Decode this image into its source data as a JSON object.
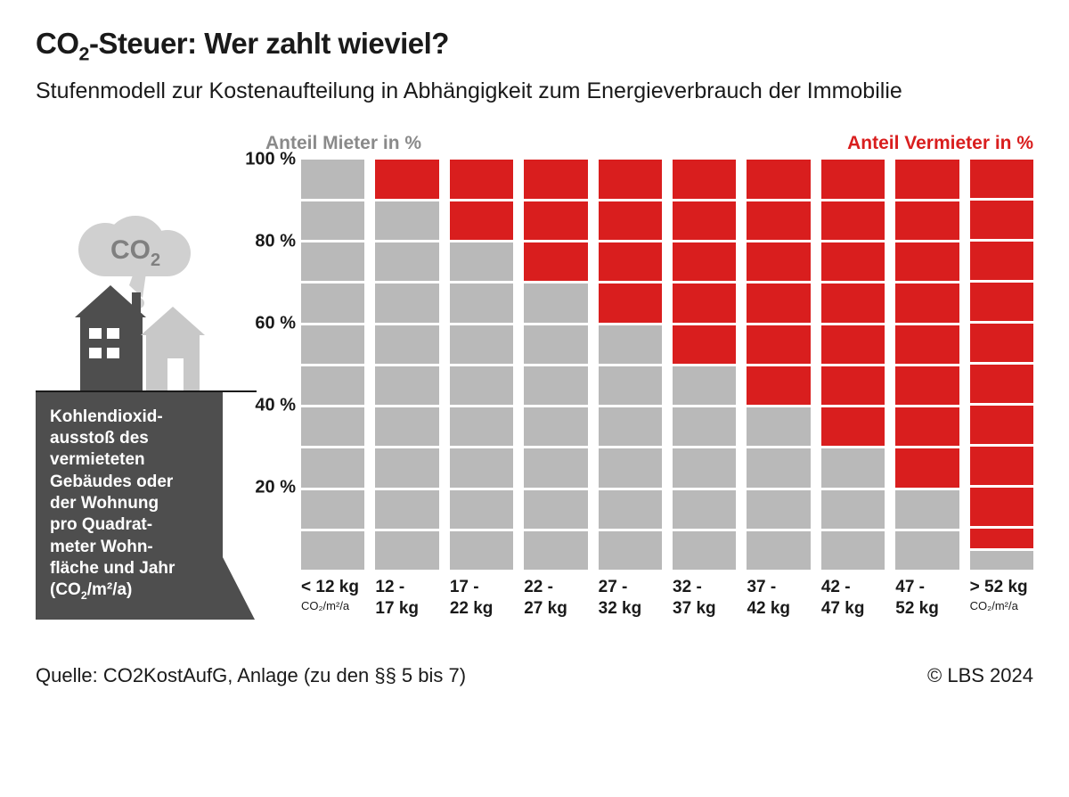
{
  "title_pre": "CO",
  "title_sub": "2",
  "title_post": "-Steuer: Wer zahlt wieviel?",
  "subtitle": "Stufenmodell zur Kostenaufteilung in Abhängigkeit zum Energieverbrauch der Immobilie",
  "cloud_label_pre": "CO",
  "cloud_label_sub": "2",
  "pedestal_text_html": "Kohlendioxid-<br>ausstoß des<br>vermieteten<br>Gebäudes oder<br>der Wohnung<br>pro Quadrat-<br>meter Wohn-<br>fläche und Jahr<br>(CO<sub>2</sub>/m²/a)",
  "legend": {
    "mieter": "Anteil Mieter in %",
    "vermieter": "Anteil Vermieter in %"
  },
  "colors": {
    "mieter": "#b9b9b9",
    "vermieter": "#d91e1e",
    "mieter_text": "#8a8a8a",
    "pedestal": "#4e4e4e",
    "house_dark": "#4e4e4e",
    "house_light": "#c8c8c8",
    "cloud": "#d0d0d0",
    "cloud_text": "#808080",
    "background": "#ffffff"
  },
  "chart": {
    "type": "stacked-bar",
    "y_ticks": [
      "100 %",
      "80 %",
      "60 %",
      "40 %",
      "20 %"
    ],
    "y_tick_positions_pct": [
      0,
      20,
      40,
      60,
      80
    ],
    "segments_per_bar": 10,
    "bars": [
      {
        "label": "< 12 kg",
        "unit": "CO₂/m²/a",
        "vermieter_segments": 0,
        "mieter_segments": 10
      },
      {
        "label": "12 -\n17 kg",
        "unit": "",
        "vermieter_segments": 1,
        "mieter_segments": 9
      },
      {
        "label": "17 -\n22 kg",
        "unit": "",
        "vermieter_segments": 2,
        "mieter_segments": 8
      },
      {
        "label": "22 -\n27 kg",
        "unit": "",
        "vermieter_segments": 3,
        "mieter_segments": 7
      },
      {
        "label": "27 -\n32 kg",
        "unit": "",
        "vermieter_segments": 4,
        "mieter_segments": 6
      },
      {
        "label": "32 -\n37 kg",
        "unit": "",
        "vermieter_segments": 5,
        "mieter_segments": 5
      },
      {
        "label": "37 -\n42 kg",
        "unit": "",
        "vermieter_segments": 6,
        "mieter_segments": 4
      },
      {
        "label": "42 -\n47 kg",
        "unit": "",
        "vermieter_segments": 7,
        "mieter_segments": 3
      },
      {
        "label": "47 -\n52 kg",
        "unit": "",
        "vermieter_segments": 8,
        "mieter_segments": 2
      },
      {
        "label": "> 52 kg",
        "unit": "CO₂/m²/a",
        "vermieter_segments": 9.5,
        "mieter_segments": 0.5
      }
    ]
  },
  "source": "Quelle: CO2KostAufG, Anlage (zu den §§ 5 bis 7)",
  "copyright": "© LBS 2024"
}
